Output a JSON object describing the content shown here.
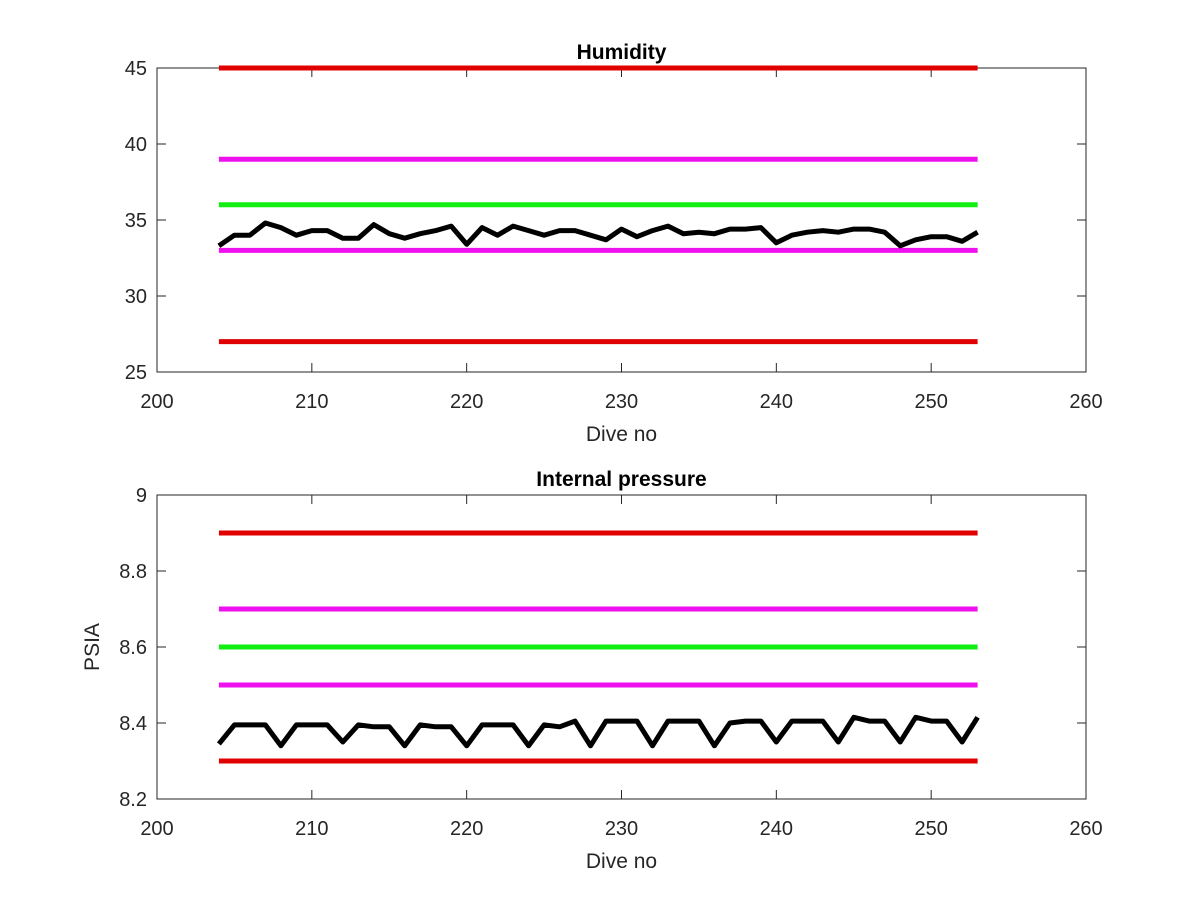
{
  "chart_data": [
    {
      "type": "line",
      "title": "Humidity",
      "xlabel": "Dive no",
      "ylabel": "",
      "xlim": [
        200,
        260
      ],
      "ylim": [
        25,
        45
      ],
      "xticks": [
        200,
        210,
        220,
        230,
        240,
        250,
        260
      ],
      "yticks": [
        25,
        30,
        35,
        40,
        45
      ],
      "grid": false,
      "threshold_lines": [
        {
          "y": 45,
          "x_range": [
            204,
            253
          ],
          "color": "#e00000"
        },
        {
          "y": 39,
          "x_range": [
            204,
            253
          ],
          "color": "#ee10ee"
        },
        {
          "y": 36,
          "x_range": [
            204,
            253
          ],
          "color": "#11ee11"
        },
        {
          "y": 33,
          "x_range": [
            204,
            253
          ],
          "color": "#ee10ee"
        },
        {
          "y": 27,
          "x_range": [
            204,
            253
          ],
          "color": "#e00000"
        }
      ],
      "series": [
        {
          "color": "#000000",
          "x": [
            204,
            205,
            206,
            207,
            208,
            209,
            210,
            211,
            212,
            213,
            214,
            215,
            216,
            217,
            218,
            219,
            220,
            221,
            222,
            223,
            224,
            225,
            226,
            227,
            228,
            229,
            230,
            231,
            232,
            233,
            234,
            235,
            236,
            237,
            238,
            239,
            240,
            241,
            242,
            243,
            244,
            245,
            246,
            247,
            248,
            249,
            250,
            251,
            252,
            253
          ],
          "y": [
            33.3,
            34.0,
            34.0,
            34.8,
            34.5,
            34.0,
            34.3,
            34.3,
            33.8,
            33.8,
            34.7,
            34.1,
            33.8,
            34.1,
            34.3,
            34.6,
            33.4,
            34.5,
            34.0,
            34.6,
            34.3,
            34.0,
            34.3,
            34.3,
            34.0,
            33.7,
            34.4,
            33.9,
            34.3,
            34.6,
            34.1,
            34.2,
            34.1,
            34.4,
            34.4,
            34.5,
            33.5,
            34.0,
            34.2,
            34.3,
            34.2,
            34.4,
            34.4,
            34.2,
            33.3,
            33.7,
            33.9,
            33.9,
            33.6,
            34.2
          ]
        }
      ]
    },
    {
      "type": "line",
      "title": "Internal pressure",
      "xlabel": "Dive no",
      "ylabel": "PSIA",
      "xlim": [
        200,
        260
      ],
      "ylim": [
        8.2,
        9.0
      ],
      "xticks": [
        200,
        210,
        220,
        230,
        240,
        250,
        260
      ],
      "yticks": [
        8.2,
        8.4,
        8.6,
        8.8,
        9.0
      ],
      "ytick_labels": [
        "8.2",
        "8.4",
        "8.6",
        "8.8",
        "9"
      ],
      "grid": false,
      "threshold_lines": [
        {
          "y": 8.9,
          "x_range": [
            204,
            253
          ],
          "color": "#e00000"
        },
        {
          "y": 8.7,
          "x_range": [
            204,
            253
          ],
          "color": "#ee10ee"
        },
        {
          "y": 8.6,
          "x_range": [
            204,
            253
          ],
          "color": "#11ee11"
        },
        {
          "y": 8.5,
          "x_range": [
            204,
            253
          ],
          "color": "#ee10ee"
        },
        {
          "y": 8.3,
          "x_range": [
            204,
            253
          ],
          "color": "#e00000"
        }
      ],
      "series": [
        {
          "color": "#000000",
          "x": [
            204,
            205,
            206,
            207,
            208,
            209,
            210,
            211,
            212,
            213,
            214,
            215,
            216,
            217,
            218,
            219,
            220,
            221,
            222,
            223,
            224,
            225,
            226,
            227,
            228,
            229,
            230,
            231,
            232,
            233,
            234,
            235,
            236,
            237,
            238,
            239,
            240,
            241,
            242,
            243,
            244,
            245,
            246,
            247,
            248,
            249,
            250,
            251,
            252,
            253
          ],
          "y": [
            8.345,
            8.395,
            8.395,
            8.395,
            8.34,
            8.395,
            8.395,
            8.395,
            8.35,
            8.395,
            8.39,
            8.39,
            8.34,
            8.395,
            8.39,
            8.39,
            8.34,
            8.395,
            8.395,
            8.395,
            8.34,
            8.395,
            8.39,
            8.405,
            8.34,
            8.405,
            8.405,
            8.405,
            8.34,
            8.405,
            8.405,
            8.405,
            8.34,
            8.4,
            8.405,
            8.405,
            8.35,
            8.405,
            8.405,
            8.405,
            8.35,
            8.415,
            8.405,
            8.405,
            8.35,
            8.415,
            8.405,
            8.405,
            8.35,
            8.415
          ]
        }
      ]
    }
  ]
}
